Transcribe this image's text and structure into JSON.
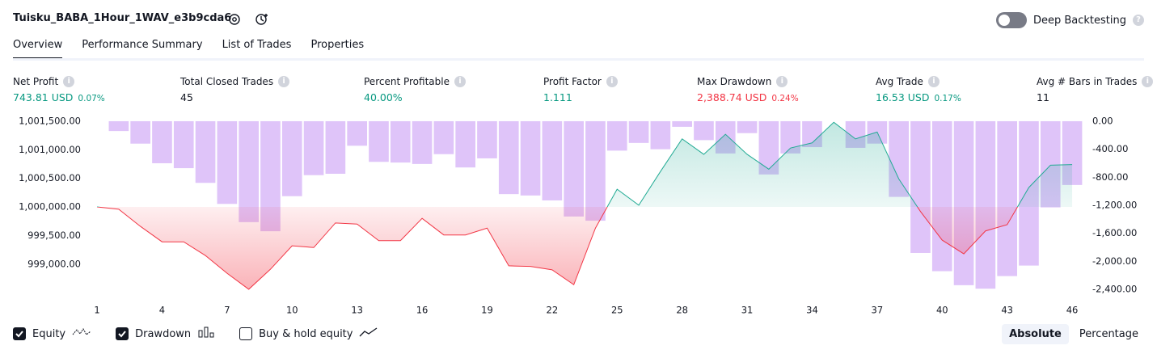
{
  "header": {
    "title": "Tuisku_BABA_1Hour_1WAV_e3b9cda6",
    "deep_backtesting": "Deep Backtesting"
  },
  "tabs": [
    "Overview",
    "Performance Summary",
    "List of Trades",
    "Properties"
  ],
  "metrics": [
    {
      "label": "Net Profit",
      "value": "743.81 USD",
      "percent": "0.07%",
      "color": "#089981"
    },
    {
      "label": "Total Closed Trades",
      "value": "45",
      "color": "#131722"
    },
    {
      "label": "Percent Profitable",
      "value": "40.00%",
      "color": "#089981"
    },
    {
      "label": "Profit Factor",
      "value": "1.111",
      "color": "#089981"
    },
    {
      "label": "Max Drawdown",
      "value": "2,388.74 USD",
      "percent": "0.24%",
      "color": "#f23645"
    },
    {
      "label": "Avg Trade",
      "value": "16.53 USD",
      "percent": "0.17%",
      "color": "#089981"
    },
    {
      "label": "Avg # Bars in Trades",
      "value": "11",
      "color": "#131722"
    }
  ],
  "chart_data": {
    "type": "line",
    "x": [
      1,
      2,
      3,
      4,
      5,
      6,
      7,
      8,
      9,
      10,
      11,
      12,
      13,
      14,
      15,
      16,
      17,
      18,
      19,
      20,
      21,
      22,
      23,
      24,
      25,
      26,
      27,
      28,
      29,
      30,
      31,
      32,
      33,
      34,
      35,
      36,
      37,
      38,
      39,
      40,
      41,
      42,
      43,
      44,
      45,
      46
    ],
    "xlim": [
      0.55,
      46.52
    ],
    "xticks": [
      1,
      4,
      7,
      10,
      13,
      16,
      19,
      22,
      25,
      28,
      31,
      34,
      37,
      40,
      43,
      46
    ],
    "ylim": [
      998460,
      1001640
    ],
    "yticks": [
      {
        "value": 1001500,
        "label": "1,001,500.00"
      },
      {
        "value": 1001000,
        "label": "1,001,000.00"
      },
      {
        "value": 1000500,
        "label": "1,000,500.00"
      },
      {
        "value": 1000000,
        "label": "1,000,000.00"
      },
      {
        "value": 999500,
        "label": "999,500.00"
      },
      {
        "value": 999000,
        "label": "999,000.00"
      }
    ],
    "y2lim": [
      -2480,
      115
    ],
    "y2ticks": [
      {
        "value": 0,
        "label": "0.00"
      },
      {
        "value": -400,
        "label": "-400.00"
      },
      {
        "value": -800,
        "label": "-800.00"
      },
      {
        "value": -1200,
        "label": "-1,200.00"
      },
      {
        "value": -1600,
        "label": "-1,600.00"
      },
      {
        "value": -2000,
        "label": "-2,000.00"
      },
      {
        "value": -2400,
        "label": "-2,400.00"
      }
    ],
    "series": [
      {
        "name": "Equity",
        "visible": true,
        "color": "#22ab94",
        "below_color": "#f23645",
        "values": [
          1000000,
          999960,
          999660,
          999390,
          999390,
          999150,
          998840,
          998560,
          998910,
          999320,
          999290,
          999720,
          999700,
          999410,
          999410,
          999800,
          999510,
          999510,
          999630,
          998970,
          998960,
          998900,
          998640,
          999630,
          1000310,
          1000030,
          1000620,
          1001190,
          1000920,
          1001270,
          1000920,
          1000660,
          1001030,
          1001120,
          1001480,
          1001190,
          1001310,
          1000490,
          999920,
          999420,
          999180,
          999580,
          999690,
          1000340,
          1000730,
          1000740
        ]
      },
      {
        "name": "Drawdown",
        "visible": true,
        "axis": "y2",
        "color": "#c99cf5",
        "values": [
          0,
          -140,
          -320,
          -600,
          -670,
          -880,
          -1180,
          -1440,
          -1570,
          -1070,
          -770,
          -750,
          -350,
          -580,
          -590,
          -610,
          -470,
          -660,
          -530,
          -1040,
          -1060,
          -1130,
          -1360,
          -1420,
          -420,
          -310,
          -400,
          -80,
          -270,
          -460,
          -170,
          -760,
          -460,
          -370,
          0,
          -380,
          -320,
          -1080,
          -1880,
          -2140,
          -2340,
          -2390,
          -2210,
          -2060,
          -1230,
          -910
        ]
      },
      {
        "name": "Buy & hold equity",
        "visible": false
      }
    ]
  },
  "modes": [
    "Absolute",
    "Percentage"
  ],
  "selected_mode": 0
}
